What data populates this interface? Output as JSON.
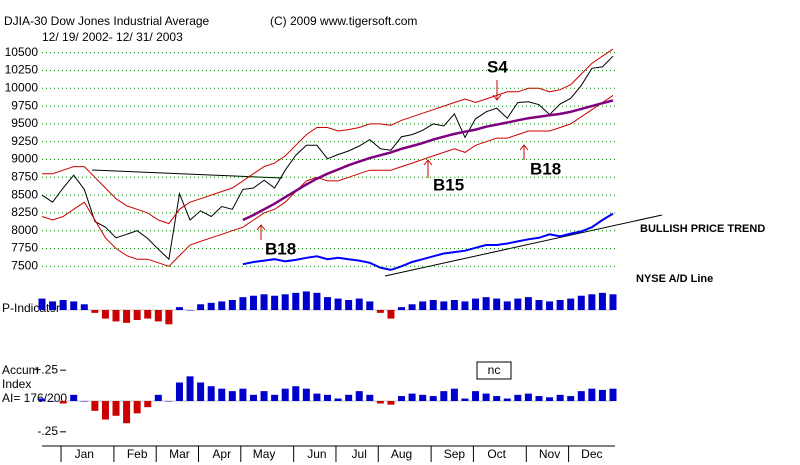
{
  "chart_data": [
    {
      "type": "line",
      "title": "DJIA-30   Dow Jones Industrial Average",
      "credit": "(C) 2009 www.tigersoft.com",
      "subtitle": "12/ 19/ 2002- 12/ 31/ 2003",
      "ylim": [
        7350,
        10650
      ],
      "yticks": [
        7500,
        7750,
        8000,
        8250,
        8500,
        8750,
        9000,
        9250,
        9500,
        9750,
        10000,
        10250,
        10500
      ],
      "grid": true,
      "series": [
        {
          "color": "#000000",
          "values": [
            8500,
            8400,
            8600,
            8780,
            8580,
            8130,
            8050,
            7900,
            7950,
            8000,
            7890,
            7740,
            7600,
            8520,
            8150,
            8280,
            8200,
            8340,
            8300,
            8580,
            8600,
            8710,
            8600,
            8850,
            9060,
            9200,
            9200,
            9010,
            9070,
            9120,
            9190,
            9280,
            9150,
            9130,
            9320,
            9350,
            9410,
            9500,
            9470,
            9640,
            9310,
            9570,
            9670,
            9720,
            9580,
            9800,
            9810,
            9770,
            9630,
            9780,
            9860,
            10040,
            10280,
            10300,
            10450
          ]
        },
        {
          "color": "#cc0000",
          "values": [
            8800,
            8800,
            8850,
            8900,
            8900,
            8750,
            8600,
            8450,
            8350,
            8300,
            8250,
            8150,
            8100,
            8300,
            8400,
            8450,
            8500,
            8550,
            8600,
            8700,
            8800,
            8900,
            8950,
            9050,
            9200,
            9350,
            9450,
            9450,
            9400,
            9420,
            9450,
            9500,
            9500,
            9480,
            9550,
            9600,
            9650,
            9700,
            9750,
            9800,
            9850,
            9800,
            9850,
            9900,
            9950,
            9950,
            10000,
            10000,
            9950,
            9980,
            10050,
            10200,
            10350,
            10450,
            10550
          ]
        },
        {
          "color": "#cc0000",
          "values": [
            8200,
            8150,
            8200,
            8300,
            8400,
            8150,
            7900,
            7750,
            7650,
            7600,
            7600,
            7550,
            7500,
            7650,
            7800,
            7850,
            7900,
            7950,
            8000,
            8050,
            8150,
            8250,
            8300,
            8400,
            8550,
            8700,
            8750,
            8700,
            8700,
            8750,
            8800,
            8850,
            8850,
            8850,
            8900,
            8950,
            9000,
            9050,
            9100,
            9150,
            9100,
            9200,
            9250,
            9300,
            9300,
            9350,
            9400,
            9400,
            9400,
            9450,
            9500,
            9600,
            9700,
            9800,
            9900
          ]
        },
        {
          "color": "#800080",
          "values": [
            null,
            null,
            null,
            null,
            null,
            null,
            null,
            null,
            null,
            null,
            null,
            null,
            null,
            null,
            null,
            null,
            null,
            null,
            null,
            8150,
            8220,
            8300,
            8380,
            8470,
            8560,
            8650,
            8730,
            8800,
            8860,
            8920,
            8970,
            9020,
            9060,
            9100,
            9150,
            9190,
            9230,
            9280,
            9320,
            9360,
            9390,
            9420,
            9460,
            9490,
            9520,
            9550,
            9580,
            9600,
            9620,
            9640,
            9670,
            9710,
            9750,
            9790,
            9830
          ]
        },
        {
          "color": "#0000ff",
          "values": [
            null,
            null,
            null,
            null,
            null,
            null,
            null,
            null,
            null,
            null,
            null,
            null,
            null,
            null,
            null,
            null,
            null,
            null,
            null,
            7530,
            7560,
            7580,
            7600,
            7570,
            7590,
            7620,
            7640,
            7600,
            7620,
            7600,
            7580,
            7550,
            7480,
            7450,
            7500,
            7560,
            7600,
            7640,
            7680,
            7700,
            7720,
            7760,
            7800,
            7800,
            7820,
            7850,
            7880,
            7900,
            7950,
            7920,
            7960,
            7990,
            8050,
            8150,
            8240
          ]
        }
      ],
      "annotations": [
        "S4",
        "B15",
        "B18",
        "B18",
        "BULLISH PRICE TREND",
        "NYSE A/D Line"
      ]
    },
    {
      "type": "bar",
      "title": "P-Indicator",
      "ylim": [
        -70,
        70
      ],
      "colors": {
        "positive": "#0000cc",
        "negative": "#cc0000"
      },
      "values": [
        40,
        30,
        35,
        30,
        20,
        -10,
        -30,
        -40,
        -45,
        -35,
        -30,
        -40,
        -50,
        10,
        0,
        20,
        25,
        30,
        35,
        45,
        50,
        55,
        50,
        55,
        60,
        65,
        60,
        45,
        40,
        35,
        40,
        30,
        -10,
        -30,
        10,
        20,
        30,
        35,
        30,
        35,
        30,
        40,
        45,
        40,
        30,
        40,
        45,
        35,
        30,
        35,
        40,
        50,
        55,
        60,
        55
      ]
    },
    {
      "type": "bar",
      "title": [
        "Accum",
        "Index",
        "AI= 176/200"
      ],
      "note": "nc",
      "ylim": [
        -0.3,
        0.3
      ],
      "yticks": [
        {
          "value": 0.25,
          "label": "+.25"
        },
        {
          "value": -0.25,
          "label": "-.25"
        }
      ],
      "colors": {
        "positive": "#0000cc",
        "negative": "#cc0000"
      },
      "values": [
        0.02,
        0,
        -0.02,
        0.05,
        0,
        -0.08,
        -0.15,
        -0.12,
        -0.18,
        -0.1,
        -0.05,
        0.05,
        0,
        0.15,
        0.2,
        0.15,
        0.12,
        0.1,
        0.08,
        0.1,
        0.05,
        0.08,
        0.05,
        0.1,
        0.12,
        0.1,
        0.06,
        0.05,
        0.02,
        0.05,
        0.08,
        0.05,
        -0.02,
        -0.03,
        0.04,
        0.06,
        0.05,
        0.04,
        0.08,
        0.1,
        0.02,
        0.08,
        0.06,
        0.04,
        0.02,
        0.05,
        0.06,
        0.04,
        0.03,
        0.05,
        0.04,
        0.08,
        0.1,
        0.09,
        0.1
      ],
      "categories": [
        null,
        null,
        null,
        null,
        "Jan",
        null,
        null,
        null,
        null,
        "Feb",
        null,
        null,
        null,
        "Mar",
        null,
        null,
        null,
        "Apr",
        null,
        null,
        null,
        "May",
        null,
        null,
        null,
        null,
        "Jun",
        null,
        null,
        null,
        "Jul",
        null,
        null,
        null,
        "Aug",
        null,
        null,
        null,
        null,
        "Sep",
        null,
        null,
        null,
        "Oct",
        null,
        null,
        null,
        null,
        "Nov",
        null,
        null,
        null,
        "Dec",
        null,
        null
      ]
    }
  ]
}
